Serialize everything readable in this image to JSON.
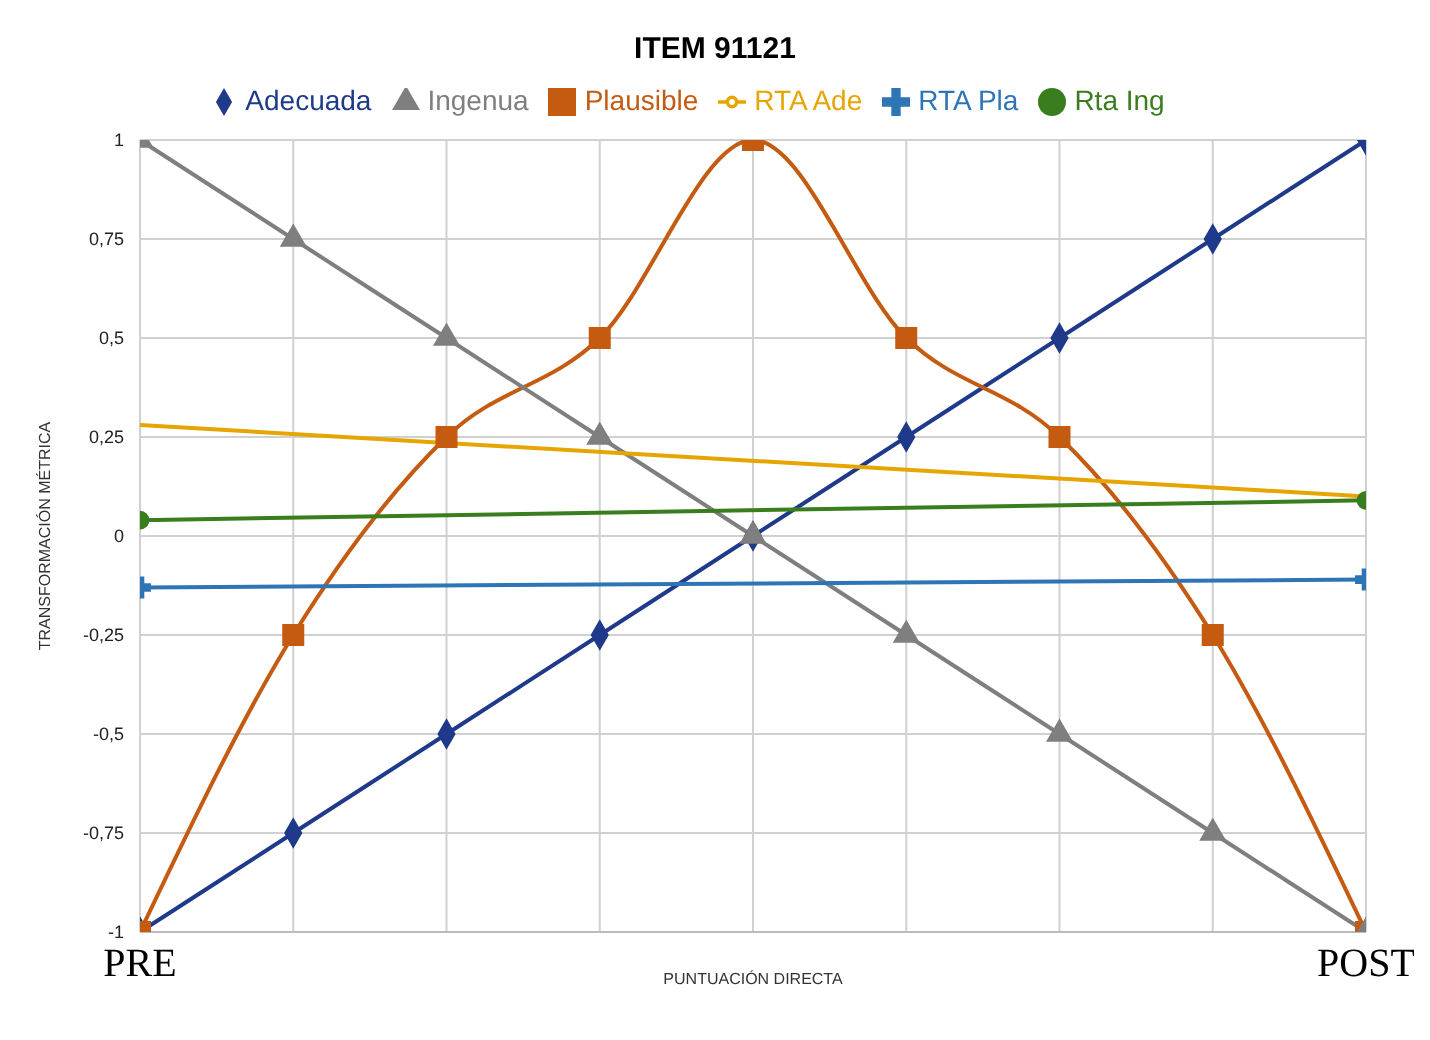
{
  "chart_data": {
    "type": "line",
    "title": "ITEM 91121",
    "xlabel": "PUNTUACIÓN DIRECTA",
    "ylabel": "TRANSFORMACIÓN MÉTRICA",
    "categories": [
      "PRE",
      null,
      null,
      null,
      null,
      null,
      null,
      null,
      "POST"
    ],
    "series": [
      {
        "name": "Adecuada",
        "color": "#1f3a8a",
        "marker": "diamond",
        "values": [
          -1,
          -0.75,
          -0.5,
          -0.25,
          0,
          0.25,
          0.5,
          0.75,
          1
        ]
      },
      {
        "name": "Plausible",
        "color": "#c55a11",
        "marker": "square",
        "values": [
          -1,
          -0.25,
          0.25,
          0.5,
          1,
          0.5,
          0.25,
          -0.25,
          -1
        ]
      },
      {
        "name": "Ingenua",
        "color": "#7f7f7f",
        "marker": "triangle",
        "values": [
          1,
          0.75,
          0.5,
          0.25,
          0,
          -0.25,
          -0.5,
          -0.75,
          -1
        ]
      },
      {
        "name": "RTA Ade",
        "color": "#e6a500",
        "marker": "none",
        "x": [
          "PRE",
          "POST"
        ],
        "values": [
          0.28,
          0.1
        ]
      },
      {
        "name": "RTA Pla",
        "color": "#2e75b6",
        "marker": "cross",
        "x": [
          "PRE",
          "POST"
        ],
        "values": [
          -0.13,
          -0.11
        ]
      },
      {
        "name": "Rta Ing",
        "color": "#3a7d1e",
        "marker": "circle",
        "x": [
          "PRE",
          "POST"
        ],
        "values": [
          0.04,
          0.09
        ]
      }
    ],
    "ylim": [
      -1,
      1
    ],
    "yticks": [
      {
        "value": -1,
        "label": "-1"
      },
      {
        "value": -0.75,
        "label": "-0,75"
      },
      {
        "value": -0.5,
        "label": "-0,5"
      },
      {
        "value": -0.25,
        "label": "-0,25"
      },
      {
        "value": 0,
        "label": "0"
      },
      {
        "value": 0.25,
        "label": "0,25"
      },
      {
        "value": 0.5,
        "label": "0,5"
      },
      {
        "value": 0.75,
        "label": "0,75"
      },
      {
        "value": 1,
        "label": "1"
      }
    ],
    "grid": true,
    "legend": "top"
  }
}
